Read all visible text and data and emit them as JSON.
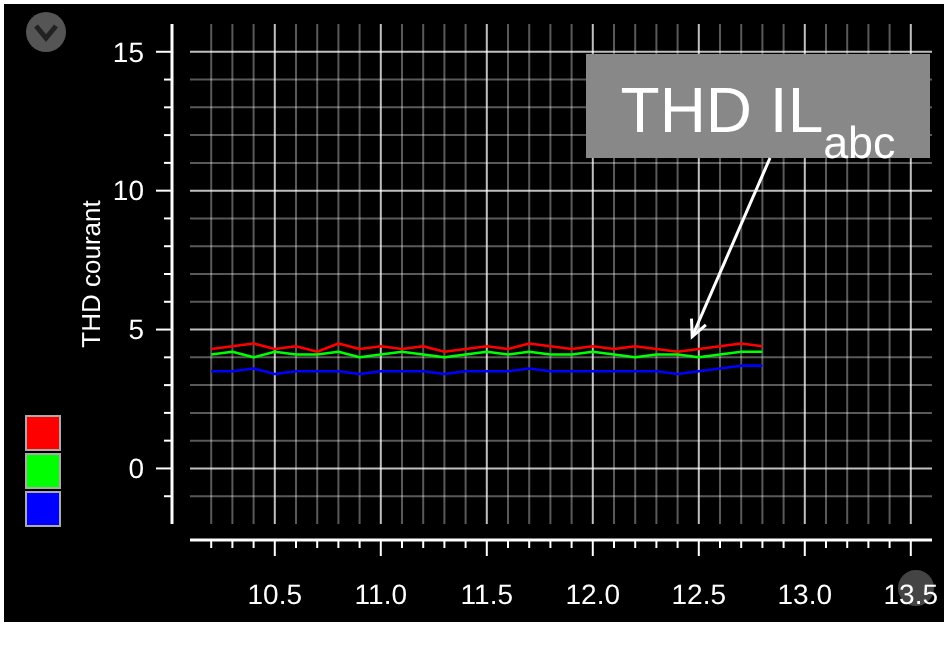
{
  "chart_data": {
    "type": "line",
    "ylabel": "THD courant",
    "x": [
      10.2,
      10.3,
      10.4,
      10.5,
      10.6,
      10.7,
      10.8,
      10.9,
      11.0,
      11.1,
      11.2,
      11.3,
      11.4,
      11.5,
      11.6,
      11.7,
      11.8,
      11.9,
      12.0,
      12.1,
      12.2,
      12.3,
      12.4,
      12.5,
      12.6,
      12.7,
      12.8
    ],
    "series": [
      {
        "color": "#ff0000",
        "values": [
          4.3,
          4.4,
          4.5,
          4.3,
          4.4,
          4.2,
          4.5,
          4.3,
          4.4,
          4.3,
          4.4,
          4.2,
          4.3,
          4.4,
          4.3,
          4.5,
          4.4,
          4.3,
          4.4,
          4.3,
          4.4,
          4.3,
          4.2,
          4.3,
          4.4,
          4.5,
          4.4
        ]
      },
      {
        "color": "#00ff00",
        "values": [
          4.1,
          4.2,
          4.0,
          4.2,
          4.1,
          4.1,
          4.2,
          4.0,
          4.1,
          4.2,
          4.1,
          4.0,
          4.1,
          4.2,
          4.1,
          4.2,
          4.1,
          4.1,
          4.2,
          4.1,
          4.0,
          4.1,
          4.1,
          4.0,
          4.1,
          4.2,
          4.2
        ]
      },
      {
        "color": "#0000ff",
        "values": [
          3.5,
          3.5,
          3.6,
          3.4,
          3.5,
          3.5,
          3.5,
          3.4,
          3.5,
          3.5,
          3.5,
          3.4,
          3.5,
          3.5,
          3.5,
          3.6,
          3.5,
          3.5,
          3.5,
          3.5,
          3.5,
          3.5,
          3.4,
          3.5,
          3.6,
          3.7,
          3.7
        ]
      }
    ],
    "xlim": [
      10.1,
      13.6
    ],
    "ylim": [
      -2,
      16
    ],
    "xticks": [
      {
        "value": 10.2,
        "label": null
      },
      {
        "value": 10.3,
        "label": null
      },
      {
        "value": 10.4,
        "label": null
      },
      {
        "value": 10.5,
        "label": "10.5"
      },
      {
        "value": 10.6,
        "label": null
      },
      {
        "value": 10.7,
        "label": null
      },
      {
        "value": 10.8,
        "label": null
      },
      {
        "value": 10.9,
        "label": null
      },
      {
        "value": 11.0,
        "label": "11.0"
      },
      {
        "value": 11.1,
        "label": null
      },
      {
        "value": 11.2,
        "label": null
      },
      {
        "value": 11.3,
        "label": null
      },
      {
        "value": 11.4,
        "label": null
      },
      {
        "value": 11.5,
        "label": "11.5"
      },
      {
        "value": 11.6,
        "label": null
      },
      {
        "value": 11.7,
        "label": null
      },
      {
        "value": 11.8,
        "label": null
      },
      {
        "value": 11.9,
        "label": null
      },
      {
        "value": 12.0,
        "label": "12.0"
      },
      {
        "value": 12.1,
        "label": null
      },
      {
        "value": 12.2,
        "label": null
      },
      {
        "value": 12.3,
        "label": null
      },
      {
        "value": 12.4,
        "label": null
      },
      {
        "value": 12.5,
        "label": "12.5"
      },
      {
        "value": 12.6,
        "label": null
      },
      {
        "value": 12.7,
        "label": null
      },
      {
        "value": 12.8,
        "label": null
      },
      {
        "value": 12.9,
        "label": null
      },
      {
        "value": 13.0,
        "label": "13.0"
      },
      {
        "value": 13.1,
        "label": null
      },
      {
        "value": 13.2,
        "label": null
      },
      {
        "value": 13.3,
        "label": null
      },
      {
        "value": 13.4,
        "label": null
      },
      {
        "value": 13.5,
        "label": "13.5"
      }
    ],
    "yticks": [
      {
        "value": -1,
        "label": null
      },
      0,
      {
        "value": 1,
        "label": null
      },
      {
        "value": 2,
        "label": null
      },
      {
        "value": 3,
        "label": null
      },
      {
        "value": 4,
        "label": null
      },
      5,
      {
        "value": 6,
        "label": null
      },
      {
        "value": 7,
        "label": null
      },
      {
        "value": 8,
        "label": null
      },
      {
        "value": 9,
        "label": null
      },
      10,
      {
        "value": 11,
        "label": null
      },
      {
        "value": 12,
        "label": null
      },
      {
        "value": 13,
        "label": null
      },
      {
        "value": 14,
        "label": null
      },
      15
    ],
    "grid": true,
    "marker": "none",
    "line_style": "solid",
    "annotations": [
      {
        "text": "THD IL$_{abc}$",
        "x": 12.45,
        "y": 4.6
      }
    ]
  }
}
